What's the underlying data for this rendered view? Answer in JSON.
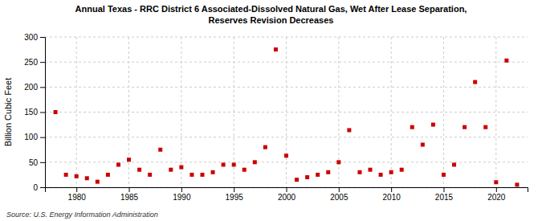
{
  "chart_data": {
    "type": "scatter",
    "title": "Annual Texas - RRC District 6 Associated-Dissolved Natural Gas, Wet After Lease Separation,\nReserves Revision Decreases",
    "ylabel": "Billion Cubic Feet",
    "annotations": [
      "Source: U.S. Energy Information Administration"
    ],
    "color": "#cc0000",
    "marker": "square",
    "grid": true,
    "xlim": [
      1977,
      2023
    ],
    "ylim": [
      0,
      300
    ],
    "xticks": [
      1980,
      1985,
      1990,
      1995,
      2000,
      2005,
      2010,
      2015,
      2020
    ],
    "yticks": [
      0,
      50,
      100,
      150,
      200,
      250,
      300
    ],
    "x": [
      1978,
      1979,
      1980,
      1981,
      1982,
      1983,
      1984,
      1985,
      1986,
      1987,
      1988,
      1989,
      1990,
      1991,
      1992,
      1993,
      1994,
      1995,
      1996,
      1997,
      1998,
      1999,
      2000,
      2001,
      2002,
      2003,
      2004,
      2005,
      2006,
      2007,
      2008,
      2009,
      2010,
      2011,
      2012,
      2013,
      2014,
      2015,
      2016,
      2017,
      2018,
      2019,
      2020,
      2021,
      2022
    ],
    "values": [
      150,
      25,
      22,
      18,
      11,
      25,
      45,
      55,
      35,
      25,
      75,
      35,
      40,
      25,
      25,
      30,
      45,
      45,
      35,
      50,
      80,
      275,
      63,
      15,
      20,
      25,
      30,
      50,
      114,
      30,
      35,
      25,
      30,
      35,
      120,
      85,
      125,
      25,
      45,
      120,
      210,
      120,
      10,
      253,
      5
    ]
  }
}
